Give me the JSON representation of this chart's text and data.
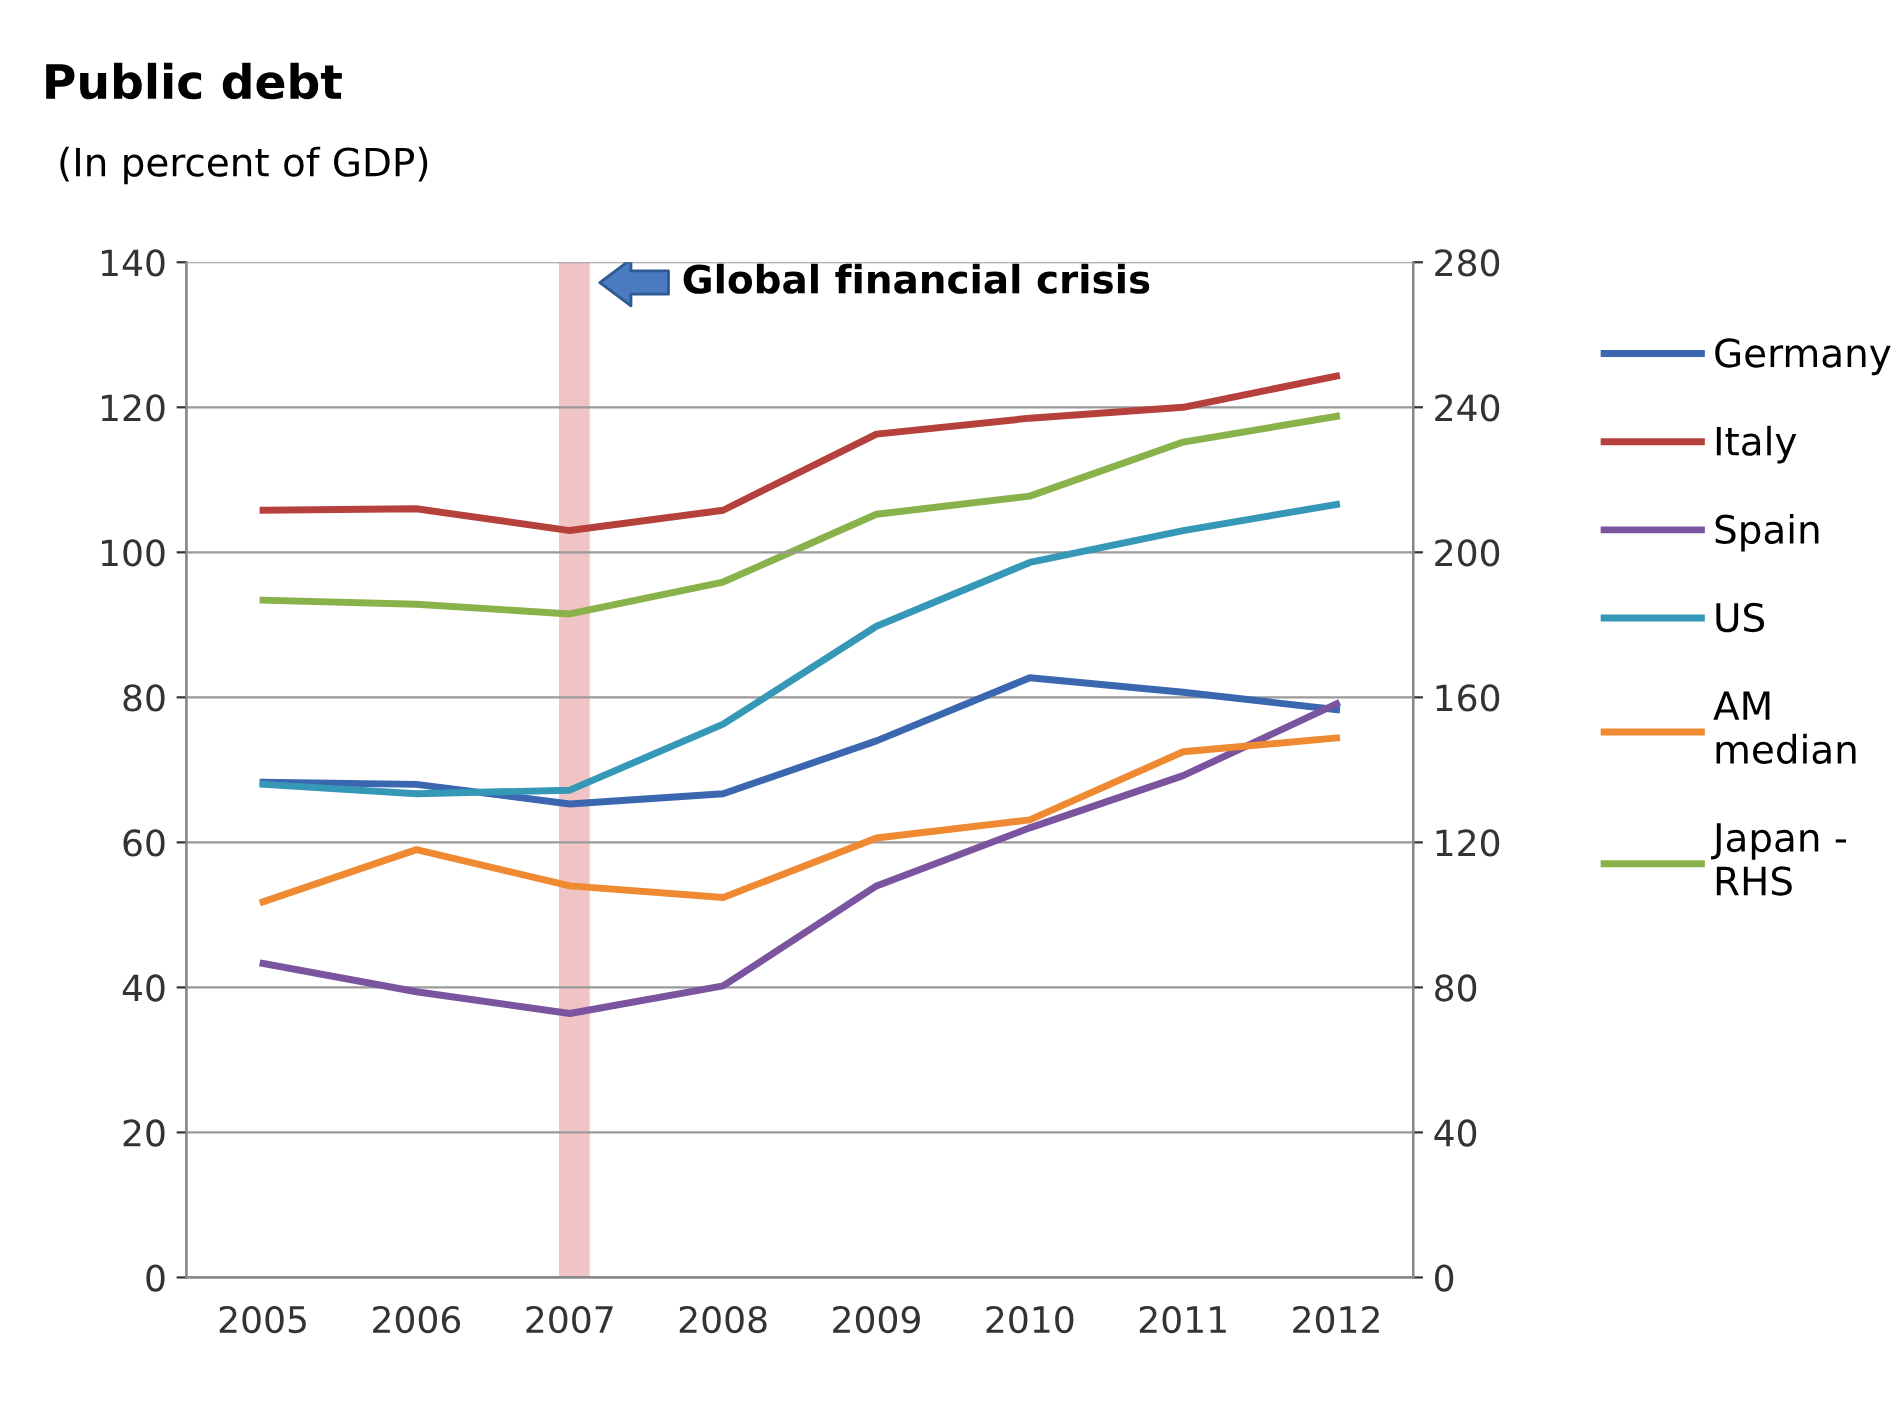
{
  "chart_data": {
    "type": "line",
    "title": "Public debt",
    "subtitle": "(In percent of GDP)",
    "x": [
      2005,
      2006,
      2007,
      2008,
      2009,
      2010,
      2011,
      2012
    ],
    "xlim": [
      2004.5,
      2012.5
    ],
    "xticks": [
      2005,
      2006,
      2007,
      2008,
      2009,
      2010,
      2011,
      2012
    ],
    "ylim": [
      0,
      140
    ],
    "yticks": [
      0,
      20,
      40,
      60,
      80,
      100,
      120,
      140
    ],
    "y2lim": [
      0,
      280
    ],
    "y2ticks": [
      0,
      40,
      80,
      120,
      160,
      200,
      240,
      280
    ],
    "grid": "y",
    "legend": "right",
    "marker": "none",
    "line_style": "solid",
    "series": [
      {
        "name": "Germany",
        "color": "#3a67b0",
        "values": [
          68.3,
          68,
          65.3,
          66.7,
          74,
          82.7,
          80.7,
          78.3
        ]
      },
      {
        "name": "Italy",
        "color": "#b5403c",
        "values": [
          105.8,
          106,
          103,
          105.8,
          116.3,
          118.5,
          120,
          124.3
        ]
      },
      {
        "name": "Spain",
        "color": "#7b54a0",
        "values": [
          43.3,
          39.4,
          36.4,
          40.2,
          54,
          62,
          69.2,
          79.1
        ]
      },
      {
        "name": "US",
        "color": "#3698b7",
        "values": [
          68,
          66.7,
          67.2,
          76.3,
          89.8,
          98.6,
          103,
          106.6
        ]
      },
      {
        "name": "AM\nmedian",
        "color": "#ef8a32",
        "values": [
          51.8,
          59,
          54,
          52.4,
          60.6,
          63.1,
          72.5,
          74.4
        ]
      },
      {
        "name": "Japan -\nRHS",
        "color": "#8ab24a",
        "axis": "y2",
        "values": [
          186.8,
          185.7,
          183,
          191.8,
          210.5,
          215.5,
          230.4,
          237.5
        ]
      }
    ],
    "bands": [
      {
        "axis": "x",
        "from": 2006.93,
        "to": 2007.13,
        "label": "Global financial crisis",
        "color": "#f0c4c4"
      }
    ]
  }
}
